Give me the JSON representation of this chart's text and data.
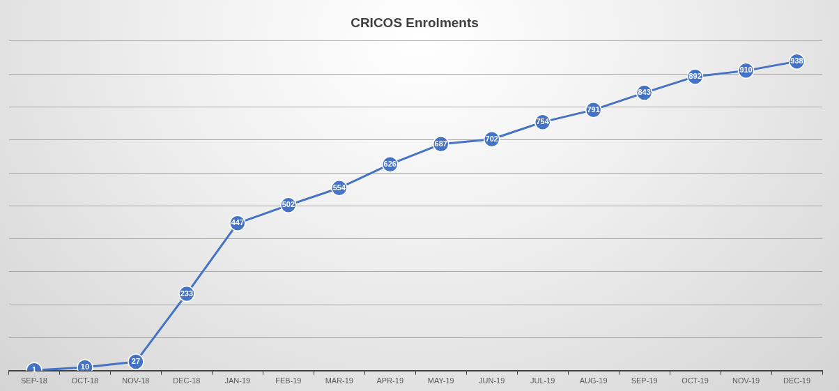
{
  "chart_data": {
    "type": "line",
    "title": "CRICOS Enrolments",
    "categories": [
      "SEP-18",
      "OCT-18",
      "NOV-18",
      "DEC-18",
      "JAN-19",
      "FEB-19",
      "MAR-19",
      "APR-19",
      "MAY-19",
      "JUN-19",
      "JUL-19",
      "AUG-19",
      "SEP-19",
      "OCT-19",
      "NOV-19",
      "DEC-19"
    ],
    "series": [
      {
        "color": "#4472c4",
        "values": [
          1,
          10,
          27,
          233,
          447,
          502,
          554,
          626,
          687,
          702,
          754,
          791,
          843,
          892,
          910,
          938
        ]
      }
    ],
    "ylim": [
      0,
      1000
    ],
    "yticks": [
      {
        "value": 0,
        "label": null
      },
      {
        "value": 100,
        "label": null
      },
      {
        "value": 200,
        "label": null
      },
      {
        "value": 300,
        "label": null
      },
      {
        "value": 400,
        "label": null
      },
      {
        "value": 500,
        "label": null
      },
      {
        "value": 600,
        "label": null
      },
      {
        "value": 700,
        "label": null
      },
      {
        "value": 800,
        "label": null
      },
      {
        "value": 900,
        "label": null
      },
      {
        "value": 1000,
        "label": null
      }
    ],
    "tick_labels": "x",
    "grid": "y",
    "legend": false,
    "marker": "circle",
    "line_style": "solid",
    "data_labels": true
  }
}
